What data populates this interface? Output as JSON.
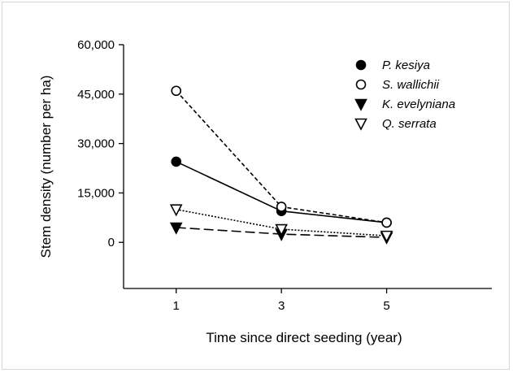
{
  "chart_data": {
    "type": "line",
    "title": "",
    "xlabel": "Time since direct seeding (year)",
    "ylabel": "Stem density (number per ha)",
    "x": [
      1,
      3,
      5
    ],
    "x_ticks": [
      1,
      3,
      5
    ],
    "x_tick_labels": [
      "1",
      "3",
      "5"
    ],
    "xlim": [
      0,
      7
    ],
    "ylim": [
      -14000,
      60000
    ],
    "y_ticks": [
      0,
      15000,
      30000,
      45000,
      60000
    ],
    "y_tick_labels": [
      "0",
      "15,000",
      "30,000",
      "45,000",
      "60,000"
    ],
    "grid": false,
    "legend_position": "top-right",
    "series": [
      {
        "name": "P. kesiya",
        "values": [
          24500,
          9500,
          6000
        ],
        "marker": "filled-circle",
        "line": "solid",
        "color": "#000000"
      },
      {
        "name": "S. wallichii",
        "values": [
          46000,
          10800,
          6000
        ],
        "marker": "open-circle",
        "line": "dashed",
        "color": "#000000"
      },
      {
        "name": "K. evelyniana",
        "values": [
          4500,
          2500,
          1500
        ],
        "marker": "filled-triangle-down",
        "line": "long-dash",
        "color": "#000000"
      },
      {
        "name": "Q. serrata",
        "values": [
          10000,
          4000,
          2000
        ],
        "marker": "open-triangle-down",
        "line": "dotted",
        "color": "#000000"
      }
    ]
  }
}
